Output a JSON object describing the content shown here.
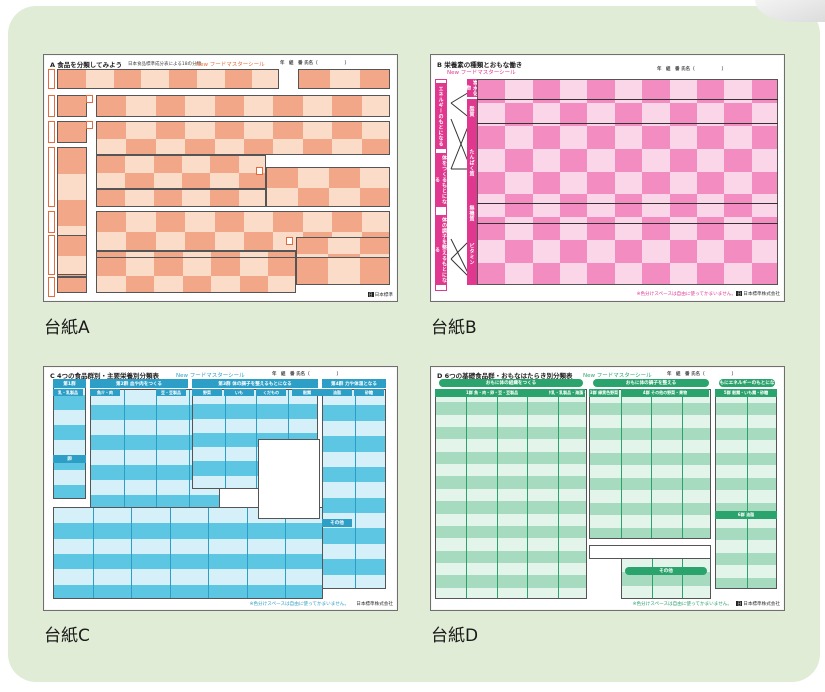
{
  "colors": {
    "panel_bg": "#e0ecd5",
    "sheet_a_dark": "#f2a888",
    "sheet_a_light": "#fbdcc9",
    "sheet_a_accent": "#e66a3c",
    "sheet_b_dark": "#f28cc1",
    "sheet_b_light": "#fbd6e9",
    "sheet_b_accent": "#e0388f",
    "sheet_c_dark": "#5cc6e3",
    "sheet_c_light": "#d5f0f8",
    "sheet_c_accent": "#2d9ec6",
    "sheet_d_dark": "#a6dbc0",
    "sheet_d_light": "#e3f4ea",
    "sheet_d_accent": "#2aa36c"
  },
  "sheets": [
    {
      "id": "A",
      "caption": "台紙A",
      "title": "A 食品を分類してみよう",
      "note": "日本食品標準成分表による18の分類",
      "new_label": "New フードマスターシール",
      "name_field": "年　組　番 氏名（　　　　　　）",
      "footer": "日本標準"
    },
    {
      "id": "B",
      "caption": "台紙B",
      "title": "B 栄養素の種類とおもな働き",
      "new_label": "New フードマスターシール",
      "name_field": "年　組　番 氏名（　　　　　　）",
      "tabs": [
        "エネルギーのもとになる",
        "体をつくるもとになる",
        "体の調子を整えるもとになる"
      ],
      "rows": [
        "炭水化物",
        "脂質",
        "たんぱく質",
        "無機質",
        "ビタミン"
      ],
      "footer_note": "※色分けスペースは自由に使ってかまいません。",
      "footer": "日本標準株式会社"
    },
    {
      "id": "C",
      "caption": "台紙C",
      "title": "C 4つの食品群別・主要栄養別分類表",
      "new_label": "New フードマスターシール",
      "name_field": "年　組　番 氏名（　　　　　　）",
      "headers": [
        "第1群",
        "第2群 血や肉をつくる",
        "第3群 体の調子を整えるもとになる",
        "第4群 力や体温となる"
      ],
      "subheaders": [
        "乳・乳製品",
        "魚介・肉",
        "豆・豆製品",
        "野菜",
        "いも",
        "くだもの",
        "穀類",
        "油脂",
        "砂糖"
      ],
      "labels": [
        "卵",
        "その他"
      ],
      "footer_note": "※色分けスペースは自由に使ってかまいません。",
      "footer": "日本標準株式会社"
    },
    {
      "id": "D",
      "caption": "台紙D",
      "title": "D 6つの基礎食品群・おもなはたらき別分類表",
      "new_label": "New フードマスターシール",
      "name_field": "年　組　番 氏名（　　　　　　）",
      "pills": [
        "おもに体の組織をつくる",
        "おもに体の調子を整える",
        "おもにエネルギーのもとになる",
        "その他"
      ],
      "headers": [
        "1群 魚・肉・卵・豆・豆製品",
        "2群 牛乳・乳製品・海藻・小魚",
        "3群 緑黄色野菜",
        "4群 その他の野菜・果物",
        "5群 穀類・いも類・砂糖",
        "6群 油脂"
      ],
      "footer_note": "※色分けスペースは自由に使ってかまいません。",
      "footer": "日本標準株式会社"
    }
  ]
}
